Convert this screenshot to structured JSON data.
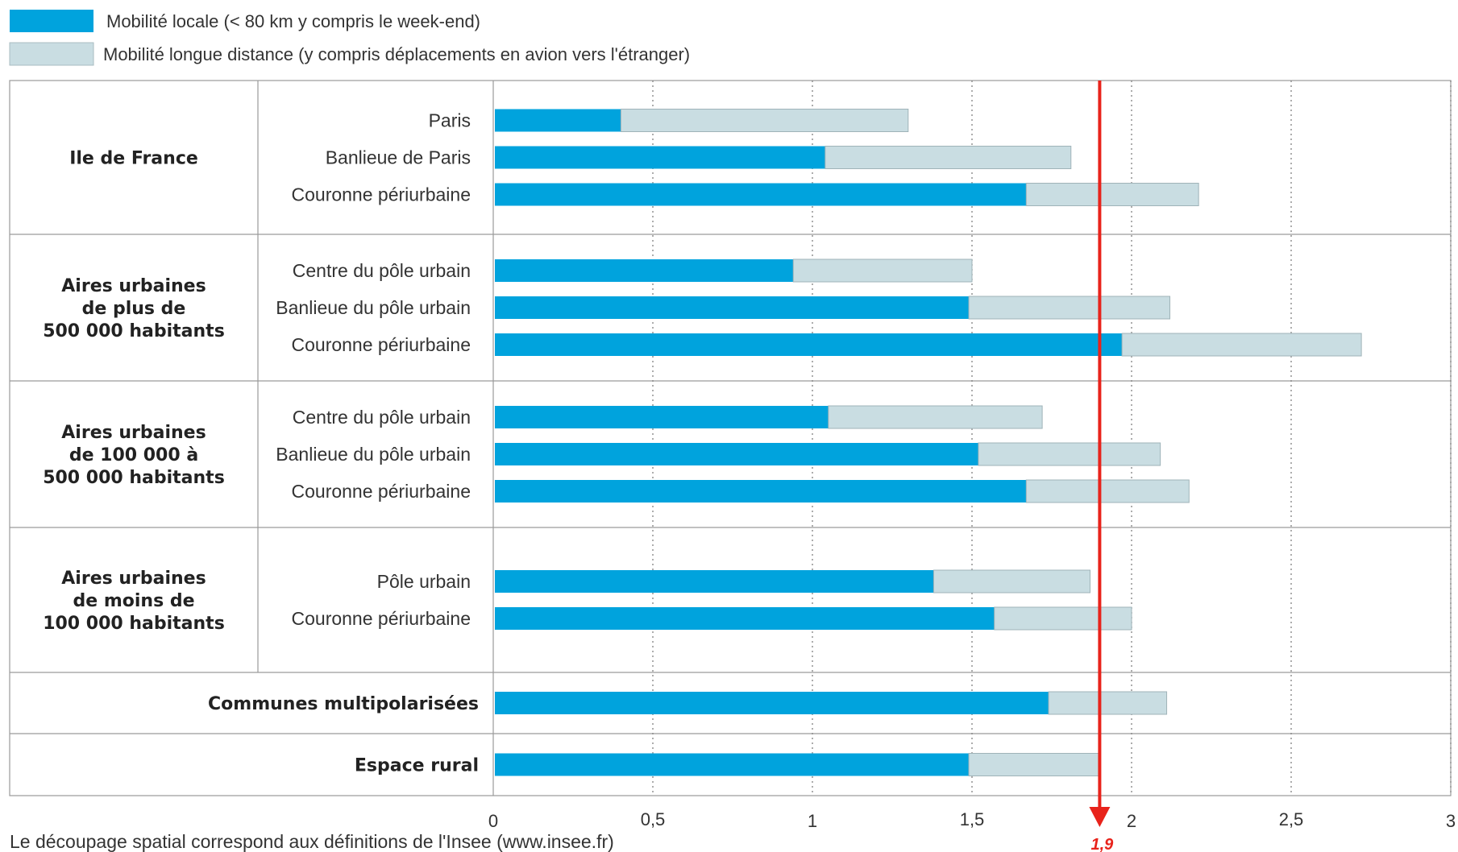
{
  "chart_data": {
    "type": "bar",
    "orientation": "horizontal",
    "stacked": true,
    "xlim": [
      0,
      3
    ],
    "xticks": [
      "0",
      "0,5",
      "1",
      "1,5",
      "2",
      "2,5",
      "3"
    ],
    "grid": "vertical-dotted",
    "legend_position": "top-left",
    "series": [
      {
        "name": "Mobilité locale (< 80 km y compris le week-end)",
        "color": "#00a3dd"
      },
      {
        "name": "Mobilité longue distance (y compris  déplacements en avion vers l'étranger)",
        "color": "#c9dde2"
      }
    ],
    "groups": [
      {
        "label": [
          "Ile de France"
        ],
        "categories": [
          {
            "label": "Paris",
            "values": [
              0.4,
              0.9
            ]
          },
          {
            "label": "Banlieue de Paris",
            "values": [
              1.04,
              0.77
            ]
          },
          {
            "label": "Couronne périurbaine",
            "values": [
              1.67,
              0.54
            ]
          }
        ]
      },
      {
        "label": [
          "Aires urbaines",
          "de plus de",
          "500 000 habitants"
        ],
        "categories": [
          {
            "label": "Centre du pôle urbain",
            "values": [
              0.94,
              0.56
            ]
          },
          {
            "label": "Banlieue du pôle urbain",
            "values": [
              1.49,
              0.63
            ]
          },
          {
            "label": "Couronne périurbaine",
            "values": [
              1.97,
              0.75
            ]
          }
        ]
      },
      {
        "label": [
          "Aires urbaines",
          "de 100 000 à",
          "500 000 habitants"
        ],
        "categories": [
          {
            "label": "Centre du pôle urbain",
            "values": [
              1.05,
              0.67
            ]
          },
          {
            "label": "Banlieue du pôle urbain",
            "values": [
              1.52,
              0.57
            ]
          },
          {
            "label": "Couronne périurbaine",
            "values": [
              1.67,
              0.51
            ]
          }
        ]
      },
      {
        "label": [
          "Aires urbaines",
          "de moins de",
          "100 000 habitants"
        ],
        "categories": [
          {
            "label": "Pôle urbain",
            "values": [
              1.38,
              0.49
            ]
          },
          {
            "label": "Couronne périurbaine",
            "values": [
              1.57,
              0.43
            ]
          }
        ]
      },
      {
        "label": [
          "Communes multipolarisées"
        ],
        "span": true,
        "categories": [
          {
            "label": "",
            "values": [
              1.74,
              0.37
            ]
          }
        ]
      },
      {
        "label": [
          "Espace rural"
        ],
        "span": true,
        "categories": [
          {
            "label": "",
            "values": [
              1.49,
              0.41
            ]
          }
        ]
      }
    ],
    "reference_line": {
      "value": 1.9,
      "label": "1,9",
      "color": "#e8231b"
    }
  },
  "footnote": "Le découpage spatial correspond aux définitions de l'Insee (www.insee.fr)"
}
